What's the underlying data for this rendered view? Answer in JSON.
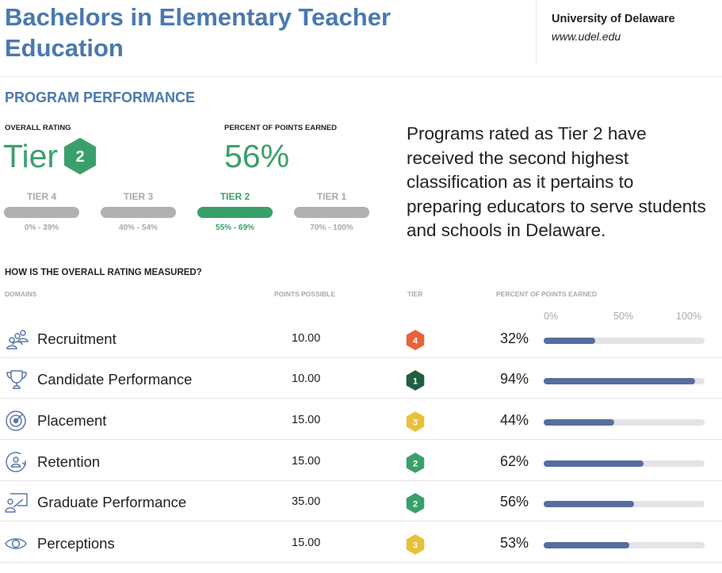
{
  "header": {
    "title": "Bachelors in Elementary Teacher Education",
    "university": "University of Delaware",
    "url": "www.udel.edu"
  },
  "performance": {
    "section_title": "PROGRAM PERFORMANCE",
    "overall_label": "OVERALL RATING",
    "overall_value": "Tier",
    "overall_tier_number": "2",
    "percent_label": "PERCENT OF POINTS EARNED",
    "percent_value": "56%",
    "tier_scale": [
      {
        "name": "TIER 4",
        "range": "0% - 39%",
        "active": false
      },
      {
        "name": "TIER 3",
        "range": "40% - 54%",
        "active": false
      },
      {
        "name": "TIER 2",
        "range": "55% - 69%",
        "active": true
      },
      {
        "name": "TIER 1",
        "range": "70% - 100%",
        "active": false
      }
    ],
    "description": "Programs rated as Tier 2 have received the second highest classification as it pertains to preparing educators to serve students and schools in Delaware."
  },
  "measurement": {
    "title": "HOW IS THE OVERALL RATING MEASURED?",
    "columns": {
      "domains": "DOMAINS",
      "points": "POINTS POSSIBLE",
      "tier": "TIER",
      "percent": "PERCENT OF POINTS EARNED"
    },
    "axis": [
      "0%",
      "50%",
      "100%"
    ],
    "rows": [
      {
        "icon": "people-group-icon",
        "name": "Recruitment",
        "points": "10.00",
        "tier": "4",
        "tier_color": "#e8633a",
        "percent_label": "32%",
        "percent": 32
      },
      {
        "icon": "trophy-icon",
        "name": "Candidate Performance",
        "points": "10.00",
        "tier": "1",
        "tier_color": "#1f5e3f",
        "percent_label": "94%",
        "percent": 94
      },
      {
        "icon": "target-icon",
        "name": "Placement",
        "points": "15.00",
        "tier": "3",
        "tier_color": "#eac03a",
        "percent_label": "44%",
        "percent": 44
      },
      {
        "icon": "person-cycle-icon",
        "name": "Retention",
        "points": "15.00",
        "tier": "2",
        "tier_color": "#3aa06b",
        "percent_label": "62%",
        "percent": 62
      },
      {
        "icon": "presenter-icon",
        "name": "Graduate Performance",
        "points": "35.00",
        "tier": "2",
        "tier_color": "#3aa06b",
        "percent_label": "56%",
        "percent": 56
      },
      {
        "icon": "eye-icon",
        "name": "Perceptions",
        "points": "15.00",
        "tier": "3",
        "tier_color": "#eac03a",
        "percent_label": "53%",
        "percent": 53
      }
    ]
  },
  "colors": {
    "brand_blue": "#4a78b0",
    "tier_green": "#3aa06b",
    "bar_fill": "#566e9d",
    "bar_track": "#e3e3e8",
    "inactive_gray": "#b1b1b1"
  }
}
